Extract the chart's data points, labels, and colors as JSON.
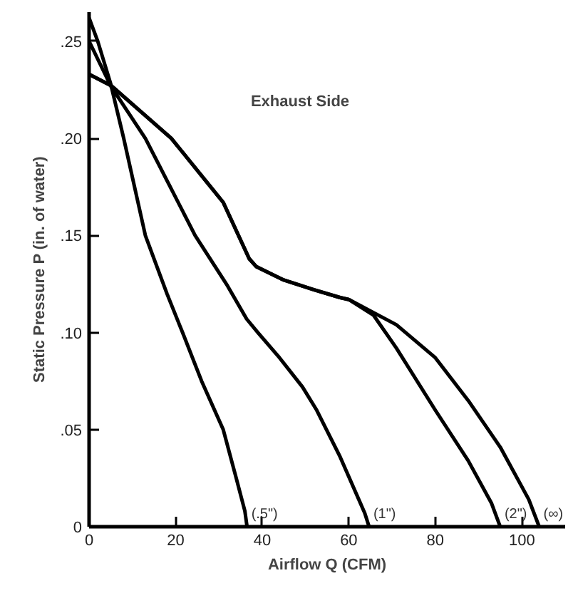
{
  "chart_data": {
    "type": "line",
    "xlabel": "Airflow Q (CFM)",
    "ylabel": "Static Pressure P (in. of water)",
    "xlim": [
      0,
      110
    ],
    "ylim": [
      0,
      0.265
    ],
    "xticks": [
      0,
      20,
      40,
      60,
      80,
      100
    ],
    "yticks": [
      {
        "value": 0,
        "label": "0"
      },
      {
        "value": 0.05,
        "label": ".05"
      },
      {
        "value": 0.1,
        "label": ".10"
      },
      {
        "value": 0.15,
        "label": ".15"
      },
      {
        "value": 0.2,
        "label": ".20"
      },
      {
        "value": 0.25,
        "label": ".25"
      }
    ],
    "grid": false,
    "legend": false,
    "marker": "none",
    "line_style": "solid",
    "series": [
      {
        "name": "(.5\")",
        "color": "#000000",
        "x": [
          0,
          2,
          5,
          8,
          13,
          18,
          21.6,
          26,
          31,
          34,
          36,
          36.5
        ],
        "values": [
          0.262,
          0.25,
          0.228,
          0.2,
          0.15,
          0.12,
          0.1,
          0.075,
          0.05,
          0.025,
          0.008,
          0
        ]
      },
      {
        "name": "(1\")",
        "color": "#000000",
        "x": [
          0,
          5,
          13,
          24.5,
          32,
          36.4,
          39,
          44,
          49.3,
          52.6,
          58,
          63.7,
          64.7
        ],
        "values": [
          0.25,
          0.227,
          0.2,
          0.15,
          0.124,
          0.107,
          0.1,
          0.087,
          0.072,
          0.06,
          0.036,
          0.007,
          0
        ]
      },
      {
        "name": "(2\")",
        "color": "#000000",
        "x": [
          0,
          5.2,
          19,
          31,
          37,
          38.6,
          45,
          52,
          58,
          60,
          65.7,
          71,
          80,
          87.6,
          93,
          95
        ],
        "values": [
          0.233,
          0.227,
          0.2,
          0.167,
          0.138,
          0.134,
          0.127,
          0.122,
          0.118,
          0.117,
          0.109,
          0.092,
          0.06,
          0.034,
          0.012,
          0
        ]
      },
      {
        "name": "(∞)",
        "color": "#000000",
        "x": [
          0,
          5.2,
          19,
          31,
          37,
          38.6,
          45,
          52,
          58,
          60,
          71,
          80,
          87.6,
          95,
          101.6,
          104
        ],
        "values": [
          0.233,
          0.227,
          0.2,
          0.167,
          0.138,
          0.134,
          0.127,
          0.122,
          0.118,
          0.117,
          0.104,
          0.087,
          0.065,
          0.041,
          0.014,
          0
        ]
      }
    ],
    "annotations": [
      "Exhaust Side"
    ]
  }
}
